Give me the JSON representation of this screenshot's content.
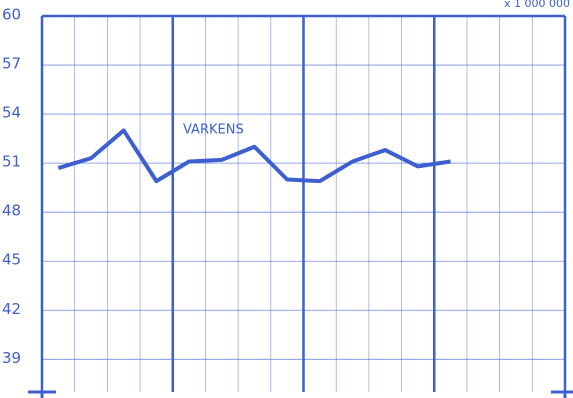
{
  "chart_data": {
    "type": "line",
    "annotation": "x 1 000 000",
    "label": "VARKENS",
    "categories": [
      null,
      null,
      null,
      null,
      null,
      null,
      null,
      null,
      null,
      null,
      null,
      null,
      null,
      null,
      null,
      null
    ],
    "series": [
      {
        "name": "VARKENS",
        "color": "#3d5fcf",
        "values": [
          50.7,
          51.3,
          53.0,
          49.9,
          51.1,
          51.2,
          52.0,
          50.0,
          49.9,
          51.1,
          51.8,
          50.8,
          51.1,
          null,
          null,
          null
        ]
      }
    ],
    "ylim": [
      37,
      60
    ],
    "yticks": [
      39,
      42,
      45,
      48,
      51,
      54,
      57,
      60
    ],
    "grid": true
  }
}
